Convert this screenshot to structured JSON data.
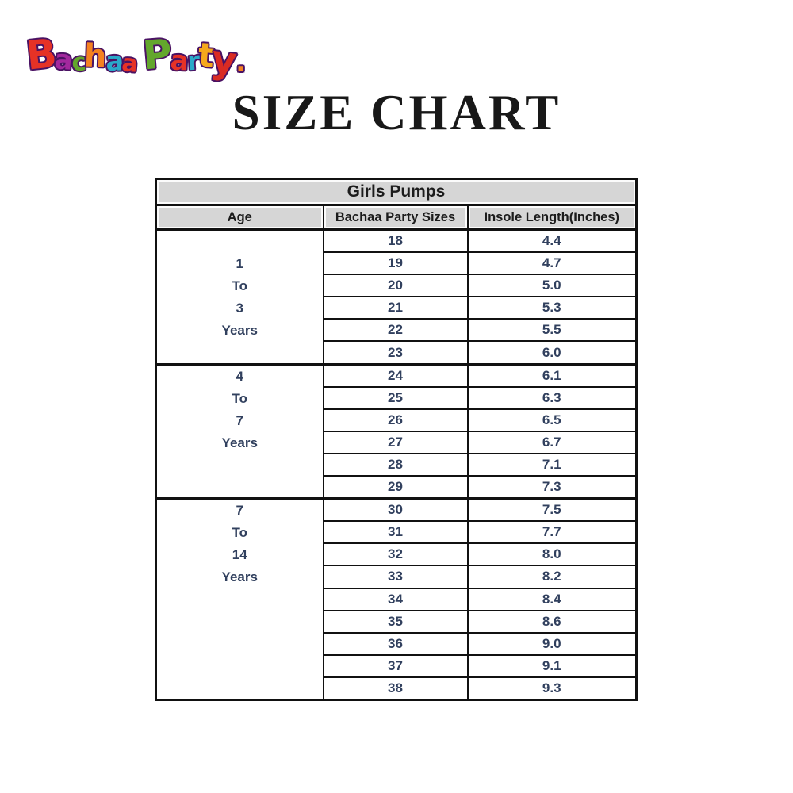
{
  "logo": {
    "alt": "Bachaa Party",
    "outline_color": "#4a1263",
    "letters": [
      {
        "ch": "B",
        "color": "#e63226"
      },
      {
        "ch": "a",
        "color": "#a3289e"
      },
      {
        "ch": "c",
        "color": "#63a72c"
      },
      {
        "ch": "h",
        "color": "#f58220"
      },
      {
        "ch": "a",
        "color": "#2aa9c9"
      },
      {
        "ch": "a",
        "color": "#e63226"
      },
      {
        "ch": " ",
        "color": "#f58220"
      },
      {
        "ch": "P",
        "color": "#63a72c"
      },
      {
        "ch": "a",
        "color": "#e63226"
      },
      {
        "ch": "r",
        "color": "#2aa9c9"
      },
      {
        "ch": "t",
        "color": "#f5a81c"
      },
      {
        "ch": "y",
        "color": "#d92b23"
      },
      {
        "ch": ".",
        "color": "#f58220"
      }
    ]
  },
  "title": "SIZE CHART",
  "table": {
    "header": "Girls Pumps",
    "columns": [
      "Age",
      "Bachaa Party Sizes",
      "Insole Length(Inches)"
    ],
    "header_bg": "#d6d6d6",
    "header_text_color": "#1c1c1c",
    "data_text_color": "#31405e",
    "border_color": "#111111",
    "groups": [
      {
        "age_lines": [
          "1",
          "To",
          "3",
          "Years"
        ],
        "rows": [
          [
            "18",
            "4.4"
          ],
          [
            "19",
            "4.7"
          ],
          [
            "20",
            "5.0"
          ],
          [
            "21",
            "5.3"
          ],
          [
            "22",
            "5.5"
          ],
          [
            "23",
            "6.0"
          ]
        ]
      },
      {
        "age_lines": [
          "4",
          "To",
          "7",
          "Years"
        ],
        "rows": [
          [
            "24",
            "6.1"
          ],
          [
            "25",
            "6.3"
          ],
          [
            "26",
            "6.5"
          ],
          [
            "27",
            "6.7"
          ],
          [
            "28",
            "7.1"
          ],
          [
            "29",
            "7.3"
          ]
        ]
      },
      {
        "age_lines": [
          "7",
          "To",
          "14",
          "Years"
        ],
        "rows": [
          [
            "30",
            "7.5"
          ],
          [
            "31",
            "7.7"
          ],
          [
            "32",
            "8.0"
          ],
          [
            "33",
            "8.2"
          ],
          [
            "34",
            "8.4"
          ],
          [
            "35",
            "8.6"
          ],
          [
            "36",
            "9.0"
          ],
          [
            "37",
            "9.1"
          ],
          [
            "38",
            "9.3"
          ]
        ]
      }
    ]
  }
}
